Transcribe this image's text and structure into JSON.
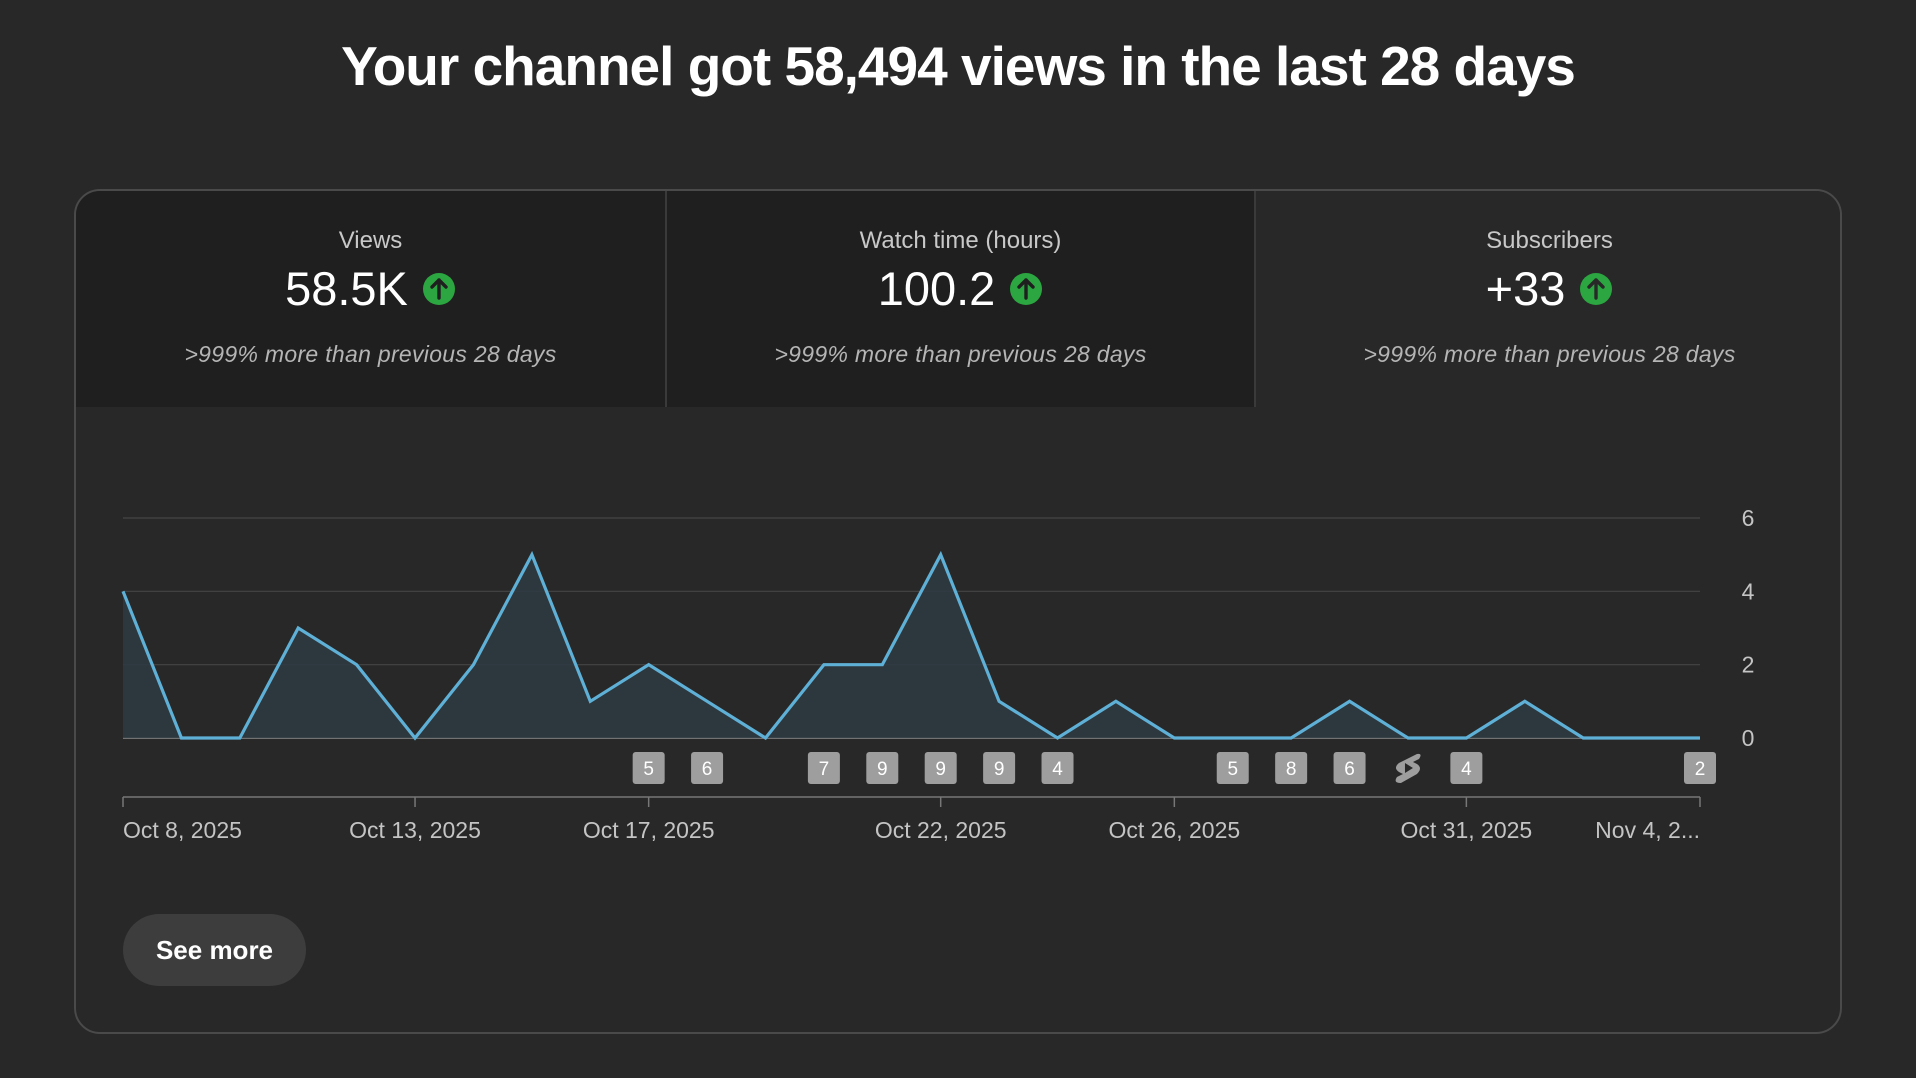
{
  "headline": "Your channel got 58,494 views in the last 28 days",
  "tabs": [
    {
      "label": "Views",
      "value": "58.5K",
      "trend_icon": "arrow-up-circle-icon",
      "delta": ">999% more than previous 28 days",
      "selected": false
    },
    {
      "label": "Watch time (hours)",
      "value": "100.2",
      "trend_icon": "arrow-up-circle-icon",
      "delta": ">999% more than previous 28 days",
      "selected": false
    },
    {
      "label": "Subscribers",
      "value": "+33",
      "trend_icon": "arrow-up-circle-icon",
      "delta": ">999% more than previous 28 days",
      "selected": true
    }
  ],
  "see_more_label": "See more",
  "colors": {
    "line": "#5fb0d6",
    "area": "#2e3a42",
    "positive": "#2ba640",
    "marker_bg": "#9e9e9e",
    "grid": "#454545"
  },
  "chart_data": {
    "type": "area",
    "series": [
      {
        "values": [
          4,
          0,
          0,
          3,
          2,
          0,
          2,
          5,
          1,
          2,
          1,
          0,
          2,
          2,
          5,
          1,
          0,
          1,
          0,
          0,
          0,
          1,
          0,
          0,
          1,
          0,
          0,
          0
        ]
      }
    ],
    "x_ticks": [
      "Oct 8, 2025",
      "Oct 13, 2025",
      "Oct 17, 2025",
      "Oct 22, 2025",
      "Oct 26, 2025",
      "Oct 31, 2025",
      "Nov 4, 2..."
    ],
    "x_tick_days": [
      0,
      5,
      9,
      14,
      18,
      23,
      27
    ],
    "y_ticks": [
      0,
      2,
      4,
      6
    ],
    "ylim": [
      0,
      6
    ],
    "y_axis_side": "right",
    "grid": true,
    "upload_markers": [
      {
        "day": 9,
        "label": "5"
      },
      {
        "day": 10,
        "label": "6"
      },
      {
        "day": 12,
        "label": "7"
      },
      {
        "day": 13,
        "label": "9"
      },
      {
        "day": 14,
        "label": "9"
      },
      {
        "day": 15,
        "label": "9"
      },
      {
        "day": 16,
        "label": "4"
      },
      {
        "day": 19,
        "label": "5"
      },
      {
        "day": 20,
        "label": "8"
      },
      {
        "day": 21,
        "label": "6"
      },
      {
        "day": 22,
        "label": "",
        "icon": "shorts-icon"
      },
      {
        "day": 23,
        "label": "4"
      },
      {
        "day": 27,
        "label": "2"
      }
    ]
  }
}
